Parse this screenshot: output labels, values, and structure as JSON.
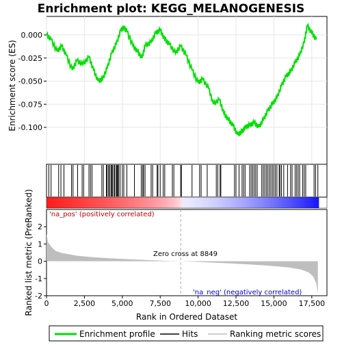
{
  "chart_data": {
    "type": "line",
    "title": "Enrichment plot: KEGG_MELANOGENESIS",
    "top_panel": {
      "ylabel": "Enrichment score (ES)",
      "ylim": [
        -0.14,
        0.02
      ],
      "yticks": [
        0.0,
        -0.025,
        -0.05,
        -0.075,
        -0.1
      ],
      "ytick_labels": [
        "0.000",
        "-0.025",
        "-0.050",
        "-0.075",
        "-0.100"
      ],
      "series_name": "Enrichment profile",
      "series_color": "#00e000",
      "x": [
        0,
        300,
        700,
        1000,
        1300,
        1700,
        2000,
        2400,
        2800,
        3100,
        3400,
        3700,
        4000,
        4300,
        4600,
        4900,
        5100,
        5300,
        5700,
        6000,
        6300,
        6500,
        6900,
        7200,
        7500,
        7800,
        8100,
        8500,
        8850,
        9200,
        9600,
        10000,
        10300,
        10700,
        11000,
        11400,
        11700,
        12000,
        12300,
        12600,
        12900,
        13100,
        13400,
        13700,
        14000,
        14300,
        14600,
        14900,
        15200,
        15500,
        15800,
        16100,
        16400,
        16700,
        17000,
        17200,
        17500,
        17800
      ],
      "y": [
        0.0,
        -0.005,
        -0.018,
        -0.012,
        -0.022,
        -0.038,
        -0.028,
        -0.032,
        -0.024,
        -0.038,
        -0.05,
        -0.048,
        -0.036,
        -0.02,
        -0.01,
        0.005,
        0.008,
        0.004,
        -0.012,
        -0.018,
        -0.025,
        -0.012,
        -0.008,
        0.002,
        0.005,
        -0.005,
        -0.01,
        -0.02,
        -0.012,
        -0.022,
        -0.038,
        -0.052,
        -0.048,
        -0.058,
        -0.075,
        -0.07,
        -0.085,
        -0.092,
        -0.098,
        -0.108,
        -0.105,
        -0.1,
        -0.098,
        -0.095,
        -0.1,
        -0.092,
        -0.082,
        -0.075,
        -0.068,
        -0.055,
        -0.045,
        -0.04,
        -0.03,
        -0.022,
        -0.008,
        0.01,
        0.002,
        -0.005
      ]
    },
    "hits": [
      150,
      300,
      800,
      950,
      1150,
      1650,
      1750,
      2050,
      2350,
      2450,
      2800,
      2900,
      3000,
      3650,
      3750,
      3950,
      4000,
      4100,
      4150,
      4250,
      4300,
      4350,
      4450,
      4500,
      4600,
      4650,
      4700,
      4750,
      4850,
      5000,
      5100,
      5300,
      5800,
      6250,
      6350,
      6400,
      6500,
      6900,
      7000,
      7300,
      7350,
      7500,
      7700,
      7800,
      8300,
      8400,
      8850,
      8900,
      9600,
      10100,
      10200,
      10600,
      11200,
      11300,
      11450,
      11500,
      12400,
      12500,
      12700,
      12900,
      13000,
      13100,
      13400,
      13500,
      13600,
      13700,
      13800,
      13900,
      14200,
      14300,
      14400,
      14500,
      14600,
      14700,
      14800,
      14900,
      15000,
      15100,
      15200,
      15350,
      15400,
      15500,
      15650,
      15900,
      16100,
      16200,
      16400,
      16500,
      16600,
      16700,
      16900,
      17000,
      17100,
      17650,
      17750,
      17900
    ],
    "bottom_panel": {
      "ylabel": "Ranked list metric (PreRanked)",
      "ylim": [
        -2.0,
        3.0
      ],
      "yticks": [
        2,
        1,
        0,
        -1,
        -2
      ],
      "ytick_labels": [
        "2",
        "1",
        "0",
        "-1",
        "-2"
      ],
      "x": [
        0,
        100,
        300,
        600,
        1000,
        2000,
        3000,
        4000,
        5000,
        6000,
        7000,
        8000,
        8849,
        10000,
        11000,
        12000,
        13000,
        14000,
        15000,
        16000,
        16800,
        17300,
        17600,
        17800,
        17900
      ],
      "y": [
        1.6,
        1.1,
        0.85,
        0.6,
        0.48,
        0.32,
        0.24,
        0.18,
        0.13,
        0.09,
        0.05,
        0.02,
        0.0,
        -0.04,
        -0.08,
        -0.12,
        -0.17,
        -0.22,
        -0.28,
        -0.36,
        -0.48,
        -0.65,
        -0.9,
        -1.3,
        -1.9
      ],
      "fill_color": "#bebebe",
      "label_pos": "'na_pos' (positively correlated)",
      "label_neg": "'na_neg' (negatively correlated)",
      "zero_cross_label": "Zero cross at 8849",
      "zero_cross": 8849
    },
    "x_axis": {
      "xlabel": "Rank in Ordered Dataset",
      "xlim": [
        0,
        18500
      ],
      "xticks": [
        0,
        2500,
        5000,
        7500,
        10000,
        12500,
        15000,
        17500
      ],
      "xtick_labels": [
        "0",
        "2,500",
        "5,000",
        "7,500",
        "10,000",
        "12,500",
        "15,000",
        "17,500"
      ]
    },
    "legend": {
      "placement": "bottom",
      "items": [
        {
          "label": "Enrichment profile",
          "color": "#00e000"
        },
        {
          "label": "Hits",
          "color": "#000000"
        },
        {
          "label": "Ranking metric scores",
          "color": "#bebebe"
        }
      ]
    }
  }
}
